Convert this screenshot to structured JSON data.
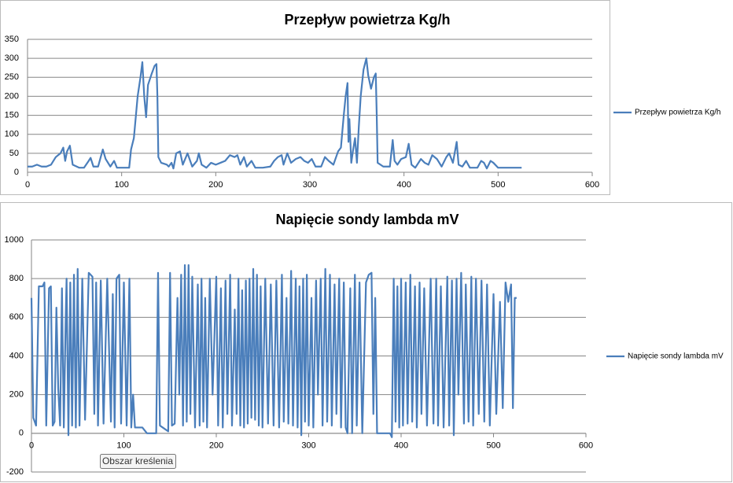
{
  "chart_data": [
    {
      "type": "line",
      "title": "Przepływ powietrza Kg/h",
      "x": [
        0,
        5,
        10,
        15,
        20,
        25,
        30,
        35,
        38,
        40,
        42,
        45,
        48,
        55,
        60,
        65,
        67,
        70,
        75,
        80,
        83,
        88,
        92,
        95,
        100,
        108,
        110,
        113,
        117,
        120,
        122,
        124,
        126,
        128,
        132,
        135,
        137,
        138,
        139,
        142,
        148,
        150,
        153,
        155,
        158,
        162,
        165,
        170,
        175,
        180,
        182,
        185,
        190,
        195,
        200,
        205,
        210,
        215,
        220,
        223,
        226,
        230,
        233,
        238,
        242,
        250,
        258,
        262,
        266,
        270,
        272,
        276,
        280,
        285,
        290,
        294,
        298,
        302,
        306,
        312,
        316,
        320,
        325,
        330,
        333,
        336,
        338,
        340,
        341,
        342,
        344,
        346,
        348,
        350,
        352,
        354,
        357,
        360,
        362,
        365,
        368,
        370,
        371,
        372,
        378,
        385,
        388,
        390,
        393,
        397,
        402,
        405,
        408,
        412,
        418,
        422,
        426,
        430,
        435,
        440,
        445,
        448,
        452,
        456,
        458,
        462,
        466,
        470,
        478,
        482,
        485,
        488,
        492,
        495,
        500,
        510,
        525
      ],
      "series": [
        {
          "name": "Przepływ powietrza Kg/h",
          "color": "#4a7ebb",
          "values": [
            15,
            15,
            20,
            15,
            15,
            20,
            40,
            50,
            65,
            30,
            55,
            70,
            20,
            12,
            12,
            30,
            38,
            15,
            15,
            60,
            35,
            15,
            30,
            12,
            12,
            12,
            60,
            90,
            200,
            250,
            290,
            200,
            145,
            230,
            260,
            280,
            285,
            200,
            40,
            25,
            20,
            15,
            25,
            10,
            50,
            55,
            20,
            50,
            15,
            30,
            50,
            20,
            12,
            25,
            20,
            25,
            30,
            45,
            40,
            45,
            20,
            40,
            15,
            30,
            12,
            12,
            15,
            30,
            40,
            45,
            20,
            50,
            25,
            35,
            40,
            30,
            25,
            35,
            15,
            15,
            40,
            30,
            20,
            55,
            65,
            150,
            200,
            235,
            80,
            140,
            25,
            60,
            90,
            25,
            120,
            200,
            270,
            300,
            255,
            220,
            250,
            260,
            155,
            25,
            15,
            15,
            85,
            30,
            20,
            35,
            40,
            75,
            20,
            12,
            35,
            25,
            20,
            45,
            35,
            15,
            40,
            50,
            25,
            80,
            20,
            15,
            30,
            12,
            12,
            30,
            25,
            10,
            30,
            25,
            12,
            12,
            12
          ]
        }
      ],
      "xlim": [
        0,
        600
      ],
      "xticks": [
        0,
        100,
        200,
        300,
        400,
        500,
        600
      ],
      "ylim": [
        0,
        350
      ],
      "yticks": [
        0,
        50,
        100,
        150,
        200,
        250,
        300,
        350
      ],
      "grid": true,
      "legend": "right"
    },
    {
      "type": "line",
      "title": "Napięcie sondy lambda mV",
      "x": [
        0,
        2,
        5,
        8,
        12,
        14,
        16,
        19,
        21,
        23,
        25,
        27,
        29,
        31,
        33,
        35,
        37,
        38,
        40,
        42,
        44,
        46,
        48,
        50,
        52,
        55,
        58,
        62,
        66,
        68,
        70,
        72,
        75,
        78,
        82,
        86,
        88,
        90,
        92,
        95,
        97,
        100,
        103,
        106,
        108,
        110,
        112,
        115,
        120,
        125,
        130,
        135,
        137,
        139,
        142,
        148,
        150,
        152,
        155,
        158,
        160,
        162,
        164,
        166,
        168,
        170,
        172,
        174,
        177,
        180,
        182,
        184,
        186,
        188,
        190,
        193,
        196,
        200,
        202,
        205,
        207,
        210,
        212,
        215,
        217,
        220,
        222,
        224,
        226,
        228,
        230,
        232,
        234,
        236,
        238,
        240,
        242,
        244,
        246,
        248,
        250,
        253,
        256,
        259,
        262,
        265,
        268,
        271,
        273,
        276,
        278,
        281,
        283,
        286,
        288,
        290,
        292,
        294,
        296,
        298,
        300,
        303,
        305,
        308,
        310,
        313,
        315,
        318,
        320,
        323,
        325,
        328,
        330,
        333,
        335,
        338,
        340,
        342,
        345,
        347,
        350,
        352,
        355,
        358,
        362,
        365,
        368,
        370,
        372,
        374,
        380,
        388,
        390,
        392,
        394,
        396,
        398,
        400,
        402,
        405,
        407,
        410,
        412,
        415,
        417,
        420,
        422,
        425,
        428,
        432,
        435,
        438,
        440,
        443,
        446,
        450,
        452,
        455,
        457,
        460,
        462,
        465,
        468,
        470,
        473,
        476,
        478,
        481,
        484,
        487,
        490,
        493,
        496,
        500,
        503,
        507,
        510,
        513,
        516,
        519,
        521,
        523,
        525
      ],
      "series": [
        {
          "name": "Napięcie sondy lambda mV",
          "color": "#4a7ebb",
          "values": [
            700,
            80,
            40,
            760,
            760,
            780,
            40,
            750,
            760,
            40,
            60,
            650,
            230,
            40,
            750,
            30,
            580,
            800,
            -10,
            780,
            40,
            820,
            30,
            850,
            40,
            800,
            70,
            830,
            810,
            100,
            780,
            40,
            790,
            50,
            800,
            60,
            720,
            30,
            800,
            820,
            50,
            780,
            40,
            800,
            30,
            200,
            30,
            30,
            30,
            0,
            0,
            0,
            830,
            40,
            30,
            10,
            830,
            40,
            50,
            700,
            200,
            820,
            40,
            870,
            60,
            870,
            100,
            810,
            30,
            770,
            40,
            800,
            60,
            700,
            30,
            800,
            200,
            810,
            40,
            750,
            30,
            790,
            100,
            820,
            40,
            640,
            100,
            800,
            40,
            740,
            30,
            790,
            50,
            800,
            80,
            850,
            70,
            820,
            40,
            760,
            30,
            800,
            50,
            770,
            40,
            790,
            30,
            820,
            60,
            700,
            50,
            840,
            40,
            800,
            30,
            760,
            -10,
            800,
            60,
            820,
            40,
            700,
            30,
            790,
            200,
            800,
            40,
            850,
            60,
            820,
            40,
            770,
            100,
            800,
            30,
            780,
            30,
            0,
            750,
            0,
            820,
            40,
            780,
            0,
            780,
            820,
            830,
            100,
            700,
            0,
            0,
            0,
            -20,
            800,
            60,
            760,
            30,
            800,
            40,
            780,
            50,
            820,
            60,
            760,
            30,
            780,
            100,
            750,
            40,
            800,
            50,
            800,
            40,
            760,
            30,
            810,
            40,
            790,
            -10,
            800,
            200,
            830,
            50,
            770,
            60,
            810,
            40,
            800,
            100,
            790,
            60,
            770,
            40,
            720,
            100,
            680,
            130,
            780,
            680,
            770,
            130,
            700,
            700
          ]
        }
      ],
      "xlim": [
        0,
        600
      ],
      "xticks": [
        0,
        100,
        200,
        300,
        400,
        500,
        600
      ],
      "ylim": [
        -200,
        1000
      ],
      "yticks": [
        -200,
        0,
        200,
        400,
        600,
        800,
        1000
      ],
      "grid": true,
      "legend": "right",
      "tooltip": "Obszar kreślenia"
    }
  ]
}
